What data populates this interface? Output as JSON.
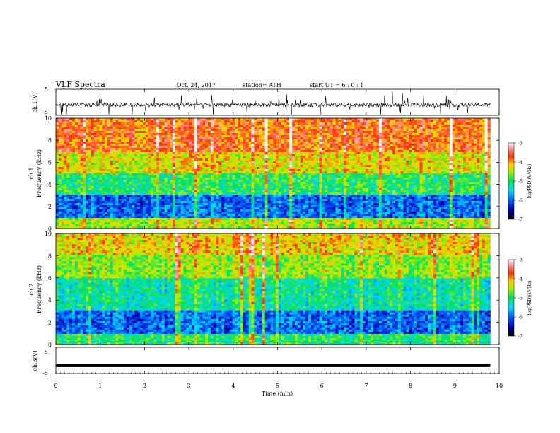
{
  "header": {
    "title": "VLF  Spectra",
    "date": "Oct. 24, 2017",
    "station": "station= ATH",
    "start": "start  UT  =   6  : 0  : 1"
  },
  "xaxis": {
    "label": "Time  (min)",
    "ticks": [
      "0",
      "1",
      "2",
      "3",
      "4",
      "5",
      "6",
      "7",
      "8",
      "9",
      "10"
    ]
  },
  "ch1_wave": {
    "label": "ch.1(V)",
    "ticks": [
      "5",
      "-5"
    ]
  },
  "ch1_spec": {
    "label_ch": "ch.1",
    "label_freq": "Frequency  (kHz)",
    "ticks": [
      "10",
      "8",
      "6",
      "4",
      "2",
      "0"
    ]
  },
  "ch2_spec": {
    "label_ch": "ch.2",
    "label_freq": "Frequency  (kHz)",
    "ticks": [
      "10",
      "8",
      "6",
      "4",
      "2",
      "0"
    ]
  },
  "ch3_wave": {
    "label": "ch.3(V)",
    "ticks": [
      "5",
      "-5"
    ]
  },
  "colorbar1": {
    "label": "log(PSD)(V²/Hz)",
    "ticks": [
      "-3",
      "-4",
      "-5",
      "-6",
      "-7"
    ]
  },
  "colorbar2": {
    "label": "log(PSD)(V²/Hz)",
    "ticks": [
      "-3",
      "-4",
      "-5",
      "-6",
      "-7"
    ]
  },
  "chart_data": [
    {
      "type": "line",
      "ylabel": "ch.1(V)",
      "xlim": [
        0,
        10
      ],
      "ylim": [
        -5,
        5
      ],
      "xlabel": "Time  (min)",
      "description_values": {
        "baseline_v": -1,
        "data_end_min": 9.8
      }
    },
    {
      "type": "heatmap",
      "ylabel": "ch.1 Frequency (kHz)",
      "xlim": [
        0,
        10
      ],
      "ylim": [
        0,
        10
      ],
      "zlim": [
        -7,
        -3
      ],
      "colorbar_label": "log(PSD)(V²/Hz)",
      "colormap": [
        "#000000",
        "#0000c8",
        "#00c8ff",
        "#00e060",
        "#e0f000",
        "#ff3000",
        "#ffffff"
      ],
      "profile": [
        {
          "freq_khz": [
            0,
            1
          ],
          "log_psd": -4.5
        },
        {
          "freq_khz": [
            1,
            3
          ],
          "log_psd": -6.0
        },
        {
          "freq_khz": [
            3,
            5
          ],
          "log_psd": -5.0
        },
        {
          "freq_khz": [
            5,
            7
          ],
          "log_psd": -4.3
        },
        {
          "freq_khz": [
            7,
            10
          ],
          "log_psd": -3.8
        }
      ]
    },
    {
      "type": "heatmap",
      "ylabel": "ch.2 Frequency (kHz)",
      "xlim": [
        0,
        10
      ],
      "ylim": [
        0,
        10
      ],
      "zlim": [
        -7,
        -3
      ],
      "colorbar_label": "log(PSD)(V²/Hz)",
      "profile": [
        {
          "freq_khz": [
            0,
            1
          ],
          "log_psd": -5.0
        },
        {
          "freq_khz": [
            1,
            3
          ],
          "log_psd": -6.0
        },
        {
          "freq_khz": [
            3,
            6
          ],
          "log_psd": -5.2
        },
        {
          "freq_khz": [
            6,
            8
          ],
          "log_psd": -4.6
        },
        {
          "freq_khz": [
            8,
            10
          ],
          "log_psd": -4.2
        }
      ]
    },
    {
      "type": "line",
      "ylabel": "ch.3(V)",
      "xlim": [
        0,
        10
      ],
      "ylim": [
        -5,
        5
      ],
      "description_values": {
        "baseline_v": -2,
        "data_end_min": 9.8
      }
    }
  ]
}
